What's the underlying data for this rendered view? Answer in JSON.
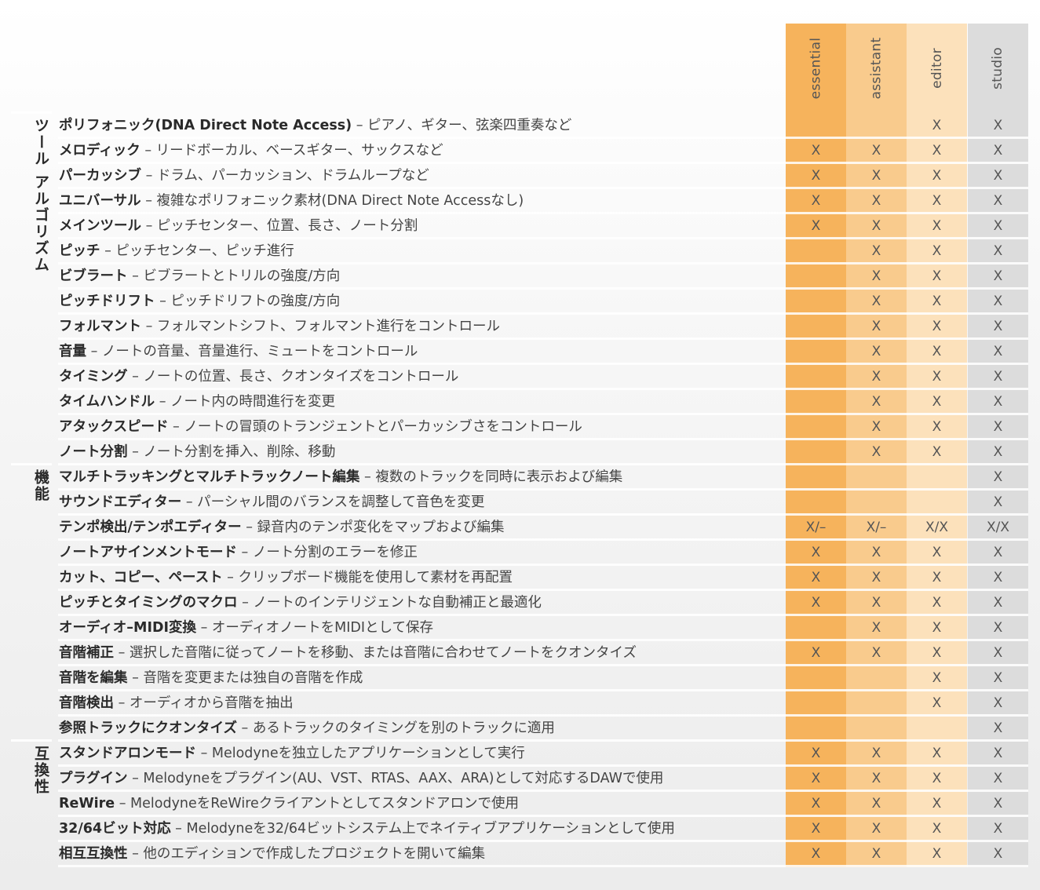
{
  "columns": [
    {
      "label": "essential",
      "color": "#f6b35c"
    },
    {
      "label": "assistant",
      "color": "#f9cb8d"
    },
    {
      "label": "editor",
      "color": "#fce1bb"
    },
    {
      "label": "studio",
      "color": "#dcdcdc"
    }
  ],
  "sections": [
    {
      "title": "ツール アルゴリズム",
      "start": 0,
      "count": 14
    },
    {
      "title": "機能",
      "start": 14,
      "count": 11
    },
    {
      "title": "互換性",
      "start": 25,
      "count": 5
    }
  ],
  "rows": [
    {
      "name": "ポリフォニック(DNA Direct Note Access)",
      "desc": " – ピアノ、ギター、弦楽四重奏など",
      "cells": [
        "",
        "",
        "X",
        "X"
      ]
    },
    {
      "name": "メロディック",
      "desc": " – リードボーカル、ベースギター、サックスなど",
      "cells": [
        "X",
        "X",
        "X",
        "X"
      ]
    },
    {
      "name": "パーカッシブ",
      "desc": " – ドラム、パーカッション、ドラムループなど",
      "cells": [
        "X",
        "X",
        "X",
        "X"
      ]
    },
    {
      "name": "ユニバーサル",
      "desc": " – 複雑なポリフォニック素材(DNA Direct Note Accessなし)",
      "cells": [
        "X",
        "X",
        "X",
        "X"
      ]
    },
    {
      "name": "メインツール",
      "desc": " – ピッチセンター、位置、長さ、ノート分割",
      "cells": [
        "X",
        "X",
        "X",
        "X"
      ]
    },
    {
      "name": "ピッチ",
      "desc": " – ピッチセンター、ピッチ進行",
      "cells": [
        "",
        "X",
        "X",
        "X"
      ]
    },
    {
      "name": "ビブラート",
      "desc": " – ビブラートとトリルの強度/方向",
      "cells": [
        "",
        "X",
        "X",
        "X"
      ]
    },
    {
      "name": "ピッチドリフト",
      "desc": " – ピッチドリフトの強度/方向",
      "cells": [
        "",
        "X",
        "X",
        "X"
      ]
    },
    {
      "name": "フォルマント",
      "desc": " – フォルマントシフト、フォルマント進行をコントロール",
      "cells": [
        "",
        "X",
        "X",
        "X"
      ]
    },
    {
      "name": "音量",
      "desc": " – ノートの音量、音量進行、ミュートをコントロール",
      "cells": [
        "",
        "X",
        "X",
        "X"
      ]
    },
    {
      "name": "タイミング",
      "desc": " – ノートの位置、長さ、クオンタイズをコントロール",
      "cells": [
        "",
        "X",
        "X",
        "X"
      ]
    },
    {
      "name": "タイムハンドル",
      "desc": " – ノート内の時間進行を変更",
      "cells": [
        "",
        "X",
        "X",
        "X"
      ]
    },
    {
      "name": "アタックスピード",
      "desc": " – ノートの冒頭のトランジェントとパーカッシブさをコントロール",
      "cells": [
        "",
        "X",
        "X",
        "X"
      ]
    },
    {
      "name": "ノート分割",
      "desc": " – ノート分割を挿入、削除、移動",
      "cells": [
        "",
        "X",
        "X",
        "X"
      ]
    },
    {
      "name": "マルチトラッキングとマルチトラックノート編集",
      "desc": " – 複数のトラックを同時に表示および編集",
      "cells": [
        "",
        "",
        "",
        "X"
      ]
    },
    {
      "name": "サウンドエディター",
      "desc": " – パーシャル間のバランスを調整して音色を変更",
      "cells": [
        "",
        "",
        "",
        "X"
      ]
    },
    {
      "name": "テンポ検出/テンポエディター",
      "desc": " – 録音内のテンポ変化をマップおよび編集",
      "cells": [
        "X/–",
        "X/–",
        "X/X",
        "X/X"
      ]
    },
    {
      "name": "ノートアサインメントモード",
      "desc": " – ノート分割のエラーを修正",
      "cells": [
        "X",
        "X",
        "X",
        "X"
      ]
    },
    {
      "name": "カット、コピー、ペースト",
      "desc": " – クリップボード機能を使用して素材を再配置",
      "cells": [
        "X",
        "X",
        "X",
        "X"
      ]
    },
    {
      "name": "ピッチとタイミングのマクロ",
      "desc": " – ノートのインテリジェントな自動補正と最適化",
      "cells": [
        "X",
        "X",
        "X",
        "X"
      ]
    },
    {
      "name": "オーディオ–MIDI変換",
      "desc": " – オーディオノートをMIDIとして保存",
      "cells": [
        "",
        "X",
        "X",
        "X"
      ]
    },
    {
      "name": "音階補正",
      "desc": " – 選択した音階に従ってノートを移動、または音階に合わせてノートをクオンタイズ",
      "cells": [
        "X",
        "X",
        "X",
        "X"
      ]
    },
    {
      "name": "音階を編集",
      "desc": " – 音階を変更または独自の音階を作成",
      "cells": [
        "",
        "",
        "X",
        "X"
      ]
    },
    {
      "name": "音階検出",
      "desc": " – オーディオから音階を抽出",
      "cells": [
        "",
        "",
        "X",
        "X"
      ]
    },
    {
      "name": "参照トラックにクオンタイズ",
      "desc": " – あるトラックのタイミングを別のトラックに適用",
      "cells": [
        "",
        "",
        "",
        "X"
      ]
    },
    {
      "name": "スタンドアロンモード",
      "desc": " – Melodyneを独立したアプリケーションとして実行",
      "cells": [
        "X",
        "X",
        "X",
        "X"
      ]
    },
    {
      "name": "プラグイン",
      "desc": " – Melodyneをプラグイン(AU、VST、RTAS、AAX、ARA)として対応するDAWで使用",
      "cells": [
        "X",
        "X",
        "X",
        "X"
      ]
    },
    {
      "name": "ReWire",
      "desc": " – MelodyneをReWireクライアントとしてスタンドアロンで使用",
      "cells": [
        "X",
        "X",
        "X",
        "X"
      ]
    },
    {
      "name": "32/64ビット対応",
      "desc": " – Melodyneを32/64ビットシステム上でネイティブアプリケーションとして使用",
      "cells": [
        "X",
        "X",
        "X",
        "X"
      ]
    },
    {
      "name": "相互互換性",
      "desc": " – 他のエディションで作成したプロジェクトを開いて編集",
      "cells": [
        "X",
        "X",
        "X",
        "X"
      ]
    }
  ]
}
